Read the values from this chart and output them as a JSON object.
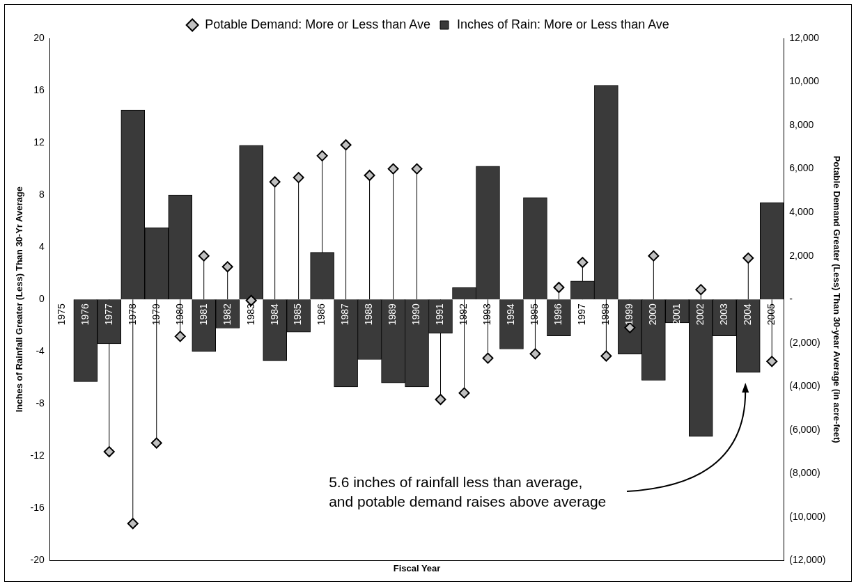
{
  "chart_data": {
    "type": "bar",
    "xlabel": "Fiscal Year",
    "ylabel": "Inches of Rainfall Greater (Less) Than 30-Yr Average",
    "y2label": "Potable Demand Greater (Less) Than 30-year Average (in acre-feet)",
    "categories": [
      "1975",
      "1976",
      "1977",
      "1978",
      "1979",
      "1980",
      "1981",
      "1982",
      "1983",
      "1984",
      "1985",
      "1986",
      "1987",
      "1988",
      "1989",
      "1990",
      "1991",
      "1992",
      "1993",
      "1994",
      "1995",
      "1996",
      "1997",
      "1998",
      "1999",
      "2000",
      "2001",
      "2002",
      "2003",
      "2004",
      "2005"
    ],
    "series": [
      {
        "name": "Inches of Rain: More or Less than Ave",
        "color": "#3a3a3a",
        "values": [
          0,
          -6.3,
          -3.4,
          14.5,
          5.5,
          8.0,
          -4.0,
          -2.2,
          11.8,
          -4.7,
          -2.5,
          3.6,
          -6.7,
          -4.6,
          -6.4,
          -6.7,
          -2.6,
          0.9,
          10.2,
          -3.8,
          7.8,
          -2.8,
          1.4,
          16.4,
          -4.2,
          -6.2,
          -1.8,
          -10.5,
          -2.8,
          -5.6,
          7.4
        ]
      },
      {
        "name": "Potable Demand: More or Less than Ave",
        "type": "lollipop",
        "axis": "y2",
        "color": "#c0c0c0",
        "marker": "diamond",
        "values": [
          null,
          null,
          -7000,
          -10300,
          -6600,
          -1700,
          2000,
          1500,
          -50,
          5400,
          5600,
          6600,
          7100,
          5700,
          6000,
          6000,
          -4600,
          -4300,
          -2700,
          null,
          -2500,
          550,
          1700,
          -2600,
          -1300,
          2000,
          null,
          450,
          null,
          1900,
          -2850
        ]
      }
    ],
    "ylim": [
      -20,
      20
    ],
    "yticks": [
      -20,
      -16,
      -12,
      -8,
      -4,
      0,
      4,
      8,
      12,
      16,
      20
    ],
    "y2lim": [
      -12000,
      12000
    ],
    "y2ticks": [
      {
        "value": -12000,
        "label": "(12,000)"
      },
      {
        "value": -10000,
        "label": "(10,000)"
      },
      {
        "value": -8000,
        "label": "(8,000)"
      },
      {
        "value": -6000,
        "label": "(6,000)"
      },
      {
        "value": -4000,
        "label": "(4,000)"
      },
      {
        "value": -2000,
        "label": "(2,000)"
      },
      {
        "value": 0,
        "label": "-"
      },
      {
        "value": 2000,
        "label": "2,000"
      },
      {
        "value": 4000,
        "label": "4,000"
      },
      {
        "value": 6000,
        "label": "6,000"
      },
      {
        "value": 8000,
        "label": "8,000"
      },
      {
        "value": 10000,
        "label": "10,000"
      },
      {
        "value": 12000,
        "label": "12,000"
      }
    ],
    "annotations": [
      "5.6 inches of rainfall less than average,\nand potable demand raises above average"
    ],
    "legend": "top",
    "grid": false
  }
}
